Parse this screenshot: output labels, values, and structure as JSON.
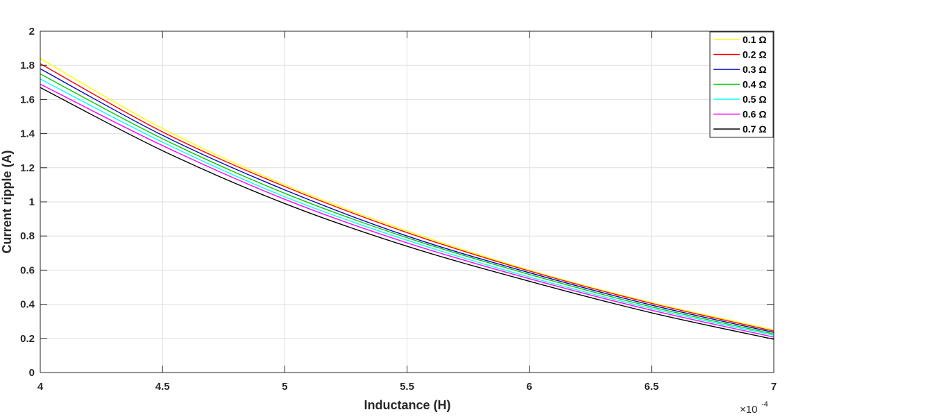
{
  "chart_data": {
    "type": "line",
    "xlabel": "Inductance (H)",
    "ylabel": "Current ripple (A)",
    "x_exponent_prefix": "×10",
    "x_exponent": "-4",
    "xlim": [
      4,
      7
    ],
    "ylim": [
      0,
      2
    ],
    "x_ticks": [
      4,
      4.5,
      5,
      5.5,
      6,
      6.5,
      7
    ],
    "x_tick_labels": [
      "4",
      "4.5",
      "5",
      "5.5",
      "6",
      "6.5",
      "7"
    ],
    "y_ticks": [
      0,
      0.2,
      0.4,
      0.6,
      0.8,
      1,
      1.2,
      1.4,
      1.6,
      1.8,
      2
    ],
    "y_tick_labels": [
      "0",
      "0.2",
      "0.4",
      "0.6",
      "0.8",
      "1",
      "1.2",
      "1.4",
      "1.6",
      "1.8",
      "2"
    ],
    "grid": true,
    "legend_position": "top-right",
    "x": [
      4,
      4.5,
      5,
      5.5,
      6,
      6.5,
      7
    ],
    "series": [
      {
        "name": "0.1 Ω",
        "color": "#ffff00",
        "values": [
          1.84,
          1.43,
          1.1,
          0.83,
          0.6,
          0.41,
          0.25
        ]
      },
      {
        "name": "0.2 Ω",
        "color": "#ff0000",
        "values": [
          1.81,
          1.41,
          1.09,
          0.82,
          0.595,
          0.405,
          0.243
        ]
      },
      {
        "name": "0.3 Ω",
        "color": "#0000cc",
        "values": [
          1.78,
          1.39,
          1.07,
          0.8,
          0.585,
          0.395,
          0.235
        ]
      },
      {
        "name": "0.4 Ω",
        "color": "#00cc00",
        "values": [
          1.75,
          1.37,
          1.05,
          0.79,
          0.575,
          0.385,
          0.226
        ]
      },
      {
        "name": "0.5 Ω",
        "color": "#00ffff",
        "values": [
          1.72,
          1.35,
          1.03,
          0.775,
          0.56,
          0.375,
          0.218
        ]
      },
      {
        "name": "0.6 Ω",
        "color": "#ff00ff",
        "values": [
          1.69,
          1.33,
          1.015,
          0.76,
          0.55,
          0.365,
          0.208
        ]
      },
      {
        "name": "0.7 Ω",
        "color": "#000000",
        "values": [
          1.67,
          1.3,
          0.99,
          0.74,
          0.535,
          0.35,
          0.195
        ]
      }
    ]
  }
}
